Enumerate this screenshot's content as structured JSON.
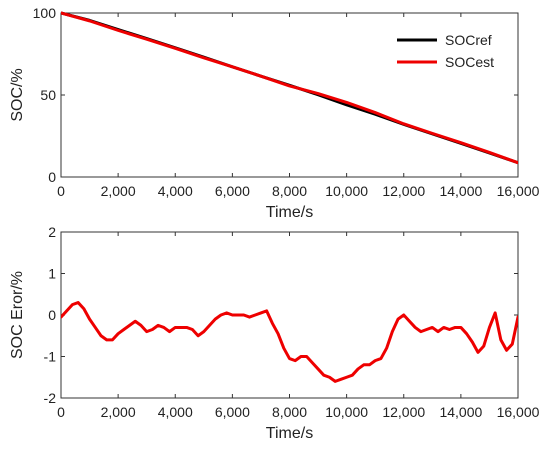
{
  "chart_data": [
    {
      "type": "line",
      "title": "",
      "xlabel": "Time/s",
      "ylabel": "SOC/%",
      "xlim": [
        0,
        16000
      ],
      "ylim": [
        0,
        100
      ],
      "xticks": [
        0,
        2000,
        4000,
        6000,
        8000,
        10000,
        12000,
        14000,
        16000
      ],
      "xtick_labels": [
        "0",
        "2,000",
        "4,000",
        "6,000",
        "8,000",
        "10,000",
        "12,000",
        "14,000",
        "16,000"
      ],
      "yticks": [
        0,
        50,
        100
      ],
      "ytick_labels": [
        "0",
        "50",
        "100"
      ],
      "grid": false,
      "legend": "top-right",
      "series": [
        {
          "name": "SOCref",
          "color": "#000000",
          "x": [
            0,
            1000,
            2000,
            3000,
            4000,
            5000,
            6000,
            7000,
            8000,
            9000,
            10000,
            11000,
            12000,
            13000,
            14000,
            15000,
            16000
          ],
          "values": [
            100,
            95.5,
            89.9,
            84.4,
            78.8,
            73.1,
            67.2,
            61.5,
            55.9,
            50.2,
            44.0,
            38.3,
            32.1,
            26.3,
            20.5,
            14.7,
            8.7
          ]
        },
        {
          "name": "SOCest",
          "color": "#ee0000",
          "x": [
            0,
            1000,
            2000,
            3000,
            4000,
            5000,
            6000,
            7000,
            8000,
            9000,
            10000,
            11000,
            12000,
            13000,
            14000,
            15000,
            16000
          ],
          "values": [
            100,
            95.2,
            89.4,
            84.0,
            78.5,
            72.7,
            67.2,
            61.5,
            55.5,
            50.9,
            45.5,
            39.3,
            32.4,
            26.6,
            20.9,
            15.0,
            8.7
          ]
        }
      ]
    },
    {
      "type": "line",
      "title": "",
      "xlabel": "Time/s",
      "ylabel": "SOC Eror/%",
      "xlim": [
        0,
        16000
      ],
      "ylim": [
        -2,
        2
      ],
      "xticks": [
        0,
        2000,
        4000,
        6000,
        8000,
        10000,
        12000,
        14000,
        16000
      ],
      "xtick_labels": [
        "0",
        "2,000",
        "4,000",
        "6,000",
        "8,000",
        "10,000",
        "12,000",
        "14,000",
        "16,000"
      ],
      "yticks": [
        -2,
        -1,
        0,
        1,
        2
      ],
      "ytick_labels": [
        "-2",
        "-1",
        "0",
        "1",
        "2"
      ],
      "grid": false,
      "series": [
        {
          "color": "#ee0000",
          "x": [
            0,
            200,
            400,
            600,
            800,
            1000,
            1200,
            1400,
            1600,
            1800,
            2000,
            2200,
            2400,
            2600,
            2800,
            3000,
            3200,
            3400,
            3600,
            3800,
            4000,
            4200,
            4400,
            4600,
            4800,
            5000,
            5200,
            5400,
            5600,
            5800,
            6000,
            6200,
            6400,
            6600,
            6800,
            7000,
            7200,
            7400,
            7600,
            7800,
            8000,
            8200,
            8400,
            8600,
            8800,
            9000,
            9200,
            9400,
            9600,
            9800,
            10000,
            10200,
            10400,
            10600,
            10800,
            11000,
            11200,
            11400,
            11600,
            11800,
            12000,
            12200,
            12400,
            12600,
            12800,
            13000,
            13200,
            13400,
            13600,
            13800,
            14000,
            14200,
            14400,
            14600,
            14800,
            15000,
            15200,
            15400,
            15600,
            15800,
            16000
          ],
          "values": [
            -0.05,
            0.1,
            0.25,
            0.3,
            0.15,
            -0.1,
            -0.3,
            -0.5,
            -0.6,
            -0.6,
            -0.45,
            -0.35,
            -0.25,
            -0.15,
            -0.25,
            -0.4,
            -0.35,
            -0.25,
            -0.3,
            -0.4,
            -0.3,
            -0.3,
            -0.3,
            -0.35,
            -0.5,
            -0.4,
            -0.25,
            -0.1,
            0.0,
            0.05,
            0.0,
            0.0,
            0.0,
            -0.05,
            0.0,
            0.05,
            0.1,
            -0.2,
            -0.45,
            -0.8,
            -1.05,
            -1.1,
            -1.0,
            -1.0,
            -1.15,
            -1.3,
            -1.45,
            -1.5,
            -1.6,
            -1.55,
            -1.5,
            -1.45,
            -1.3,
            -1.2,
            -1.2,
            -1.1,
            -1.05,
            -0.8,
            -0.4,
            -0.1,
            0.0,
            -0.15,
            -0.3,
            -0.4,
            -0.35,
            -0.3,
            -0.4,
            -0.3,
            -0.35,
            -0.3,
            -0.3,
            -0.45,
            -0.65,
            -0.9,
            -0.75,
            -0.3,
            0.05,
            -0.6,
            -0.85,
            -0.7,
            -0.05
          ]
        }
      ]
    }
  ]
}
